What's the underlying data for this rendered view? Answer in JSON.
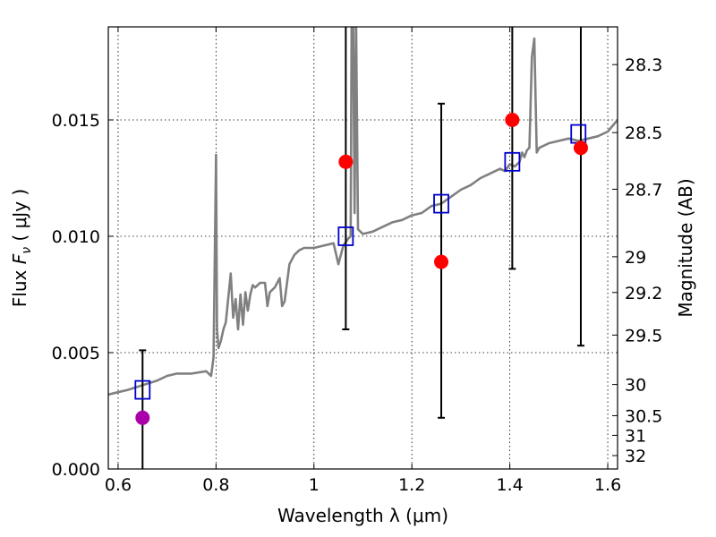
{
  "chart_data": {
    "type": "scatter",
    "xlabel": "Wavelength  λ (μm)",
    "ylabel": "Flux  F_ν  ( μJy )",
    "ylabel_parts": [
      "Flux  ",
      "F",
      "ν",
      "  ( μJy )"
    ],
    "y2label": "Magnitude (AB)",
    "xlim": [
      0.58,
      1.62
    ],
    "ylim": [
      0.0,
      0.019
    ],
    "x_ticks": [
      0.6,
      0.8,
      1.0,
      1.2,
      1.4,
      1.6
    ],
    "x_tick_labels": [
      "0.6",
      "0.8",
      "1",
      "1.2",
      "1.4",
      "1.6"
    ],
    "y_ticks": [
      0.0,
      0.005,
      0.01,
      0.015
    ],
    "y_tick_labels": [
      "0.000",
      "0.005",
      "0.010",
      "0.015"
    ],
    "y2_ticks": [
      28.3,
      28.5,
      28.7,
      29,
      29.2,
      29.5,
      30,
      30.5,
      31,
      32
    ],
    "y2_tick_labels": [
      "28.3",
      "28.5",
      "28.7",
      "29",
      "29.2",
      "29.5",
      "30",
      "30.5",
      "31",
      "32"
    ],
    "grid": true,
    "colors": {
      "model": "#808080",
      "model_photometry": "#0000cc",
      "observed": "#ff0000",
      "observed_upper": "#aa00aa",
      "errorbar": "#000000"
    },
    "series": [
      {
        "kind": "model-spectrum",
        "x": [
          0.58,
          0.6,
          0.62,
          0.65,
          0.68,
          0.7,
          0.72,
          0.75,
          0.78,
          0.79,
          0.795,
          0.8,
          0.802,
          0.805,
          0.81,
          0.815,
          0.82,
          0.83,
          0.835,
          0.84,
          0.845,
          0.85,
          0.855,
          0.86,
          0.865,
          0.87,
          0.875,
          0.88,
          0.89,
          0.9,
          0.905,
          0.91,
          0.92,
          0.93,
          0.935,
          0.94,
          0.95,
          0.96,
          0.97,
          0.98,
          0.99,
          1.0,
          1.02,
          1.04,
          1.05,
          1.06,
          1.07,
          1.075,
          1.077,
          1.08,
          1.083,
          1.086,
          1.09,
          1.1,
          1.12,
          1.14,
          1.16,
          1.18,
          1.2,
          1.22,
          1.24,
          1.26,
          1.28,
          1.3,
          1.32,
          1.34,
          1.36,
          1.38,
          1.39,
          1.4,
          1.41,
          1.42,
          1.425,
          1.43,
          1.435,
          1.44,
          1.445,
          1.45,
          1.455,
          1.46,
          1.48,
          1.5,
          1.52,
          1.54,
          1.56,
          1.58,
          1.6,
          1.62
        ],
        "y": [
          0.0032,
          0.0033,
          0.0034,
          0.0036,
          0.0038,
          0.004,
          0.0041,
          0.0041,
          0.0042,
          0.004,
          0.0048,
          0.0135,
          0.006,
          0.0052,
          0.0055,
          0.006,
          0.0063,
          0.0084,
          0.0065,
          0.0073,
          0.006,
          0.0075,
          0.0062,
          0.0076,
          0.0068,
          0.0075,
          0.0079,
          0.0078,
          0.008,
          0.008,
          0.007,
          0.0076,
          0.0078,
          0.0082,
          0.007,
          0.0072,
          0.0088,
          0.0092,
          0.0094,
          0.0095,
          0.0095,
          0.0095,
          0.0096,
          0.0097,
          0.0088,
          0.0096,
          0.0099,
          0.01,
          0.0195,
          0.019,
          0.011,
          0.0195,
          0.0103,
          0.0101,
          0.0102,
          0.0104,
          0.0106,
          0.0107,
          0.0109,
          0.011,
          0.0113,
          0.0114,
          0.0117,
          0.012,
          0.0122,
          0.0125,
          0.0127,
          0.0129,
          0.0128,
          0.0131,
          0.013,
          0.0132,
          0.0136,
          0.0134,
          0.0137,
          0.0138,
          0.0177,
          0.0185,
          0.0136,
          0.0138,
          0.014,
          0.0141,
          0.0142,
          0.0141,
          0.0142,
          0.0143,
          0.0145,
          0.015
        ]
      },
      {
        "kind": "model-photometry",
        "x": [
          0.65,
          1.065,
          1.26,
          1.405,
          1.54
        ],
        "y": [
          0.0034,
          0.01,
          0.0114,
          0.0132,
          0.0144
        ]
      },
      {
        "kind": "observed",
        "x": [
          1.065,
          1.26,
          1.405,
          1.545
        ],
        "y": [
          0.0132,
          0.0089,
          0.015,
          0.0138
        ],
        "yerr_low": [
          0.006,
          0.0022,
          0.0086,
          0.0053
        ],
        "yerr_high": [
          0.019,
          0.0157,
          0.019,
          0.019
        ]
      },
      {
        "kind": "observed-upper",
        "x": [
          0.65
        ],
        "y": [
          0.0022
        ],
        "yerr_low": [
          0.0
        ],
        "yerr_high": [
          0.0051
        ]
      }
    ]
  }
}
